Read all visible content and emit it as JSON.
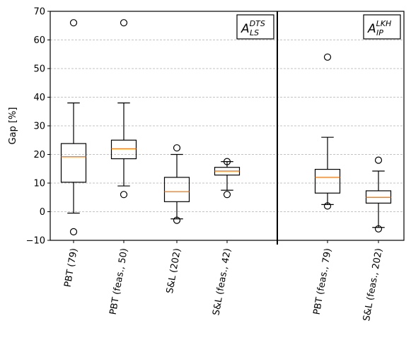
{
  "chart_data": {
    "type": "box",
    "ylabel": "Gap [%]",
    "ylim": [
      -10,
      70
    ],
    "yticks": [
      -10,
      0,
      10,
      20,
      30,
      40,
      50,
      60,
      70
    ],
    "grid": "horizontal-dashed",
    "panels": [
      {
        "label": {
          "base": "A",
          "sub": "LS",
          "sup": "DTS"
        },
        "label_placement": "top-right",
        "boxes": [
          {
            "category": "PBT (79)",
            "whisker_low": -0.5,
            "q1": 10.3,
            "median": 19.2,
            "q3": 23.8,
            "whisker_high": 38,
            "fliers": [
              66,
              -7
            ]
          },
          {
            "category": "PBT (feas., 50)",
            "whisker_low": 9,
            "q1": 18.5,
            "median": 22.0,
            "q3": 25.0,
            "whisker_high": 38,
            "fliers": [
              66,
              6
            ]
          },
          {
            "category": "S&L (202)",
            "whisker_low": -2.5,
            "q1": 3.5,
            "median": 7.0,
            "q3": 12.0,
            "whisker_high": 20,
            "fliers": [
              22.3,
              -3
            ]
          },
          {
            "category": "S&L (feas., 42)",
            "whisker_low": 7.5,
            "q1": 12.8,
            "median": 14.2,
            "q3": 15.5,
            "whisker_high": 17.5,
            "fliers": [
              17.5,
              6
            ]
          }
        ]
      },
      {
        "label": {
          "base": "A",
          "sub": "IP",
          "sup": "LKH"
        },
        "label_placement": "top-right",
        "boxes": [
          {
            "category": "PBT (feas., 79)",
            "whisker_low": 2.5,
            "q1": 6.5,
            "median": 12.0,
            "q3": 14.8,
            "whisker_high": 26,
            "fliers": [
              54,
              2
            ]
          },
          {
            "category": "S&L (feas., 202)",
            "whisker_low": -5.5,
            "q1": 3.0,
            "median": 5.0,
            "q3": 7.3,
            "whisker_high": 14.2,
            "fliers": [
              18,
              -6
            ]
          }
        ]
      }
    ]
  },
  "colors": {
    "box": "#000000",
    "median": "#ff7f0e",
    "grid": "#b0b0b0"
  }
}
